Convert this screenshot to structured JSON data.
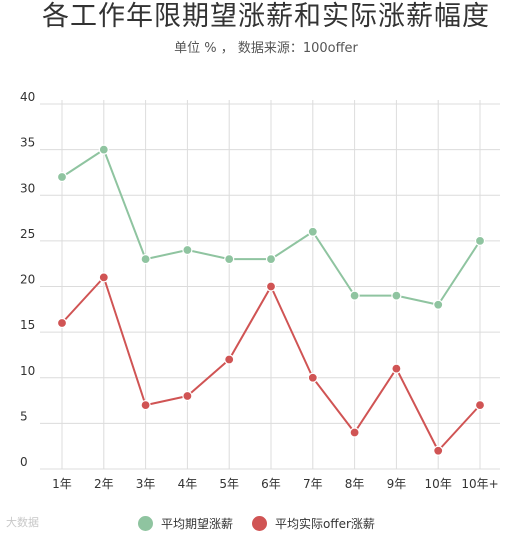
{
  "chart_data": {
    "type": "line",
    "title": "各工作年限期望涨薪和实际涨薪幅度",
    "subtitle": "单位 % ，  数据来源：100offer",
    "categories": [
      "1年",
      "2年",
      "3年",
      "4年",
      "5年",
      "6年",
      "7年",
      "8年",
      "9年",
      "10年",
      "10年+"
    ],
    "ylim": [
      0,
      40
    ],
    "yticks": [
      0,
      5,
      10,
      15,
      20,
      25,
      30,
      35,
      40
    ],
    "grid": true,
    "legend_position": "bottom",
    "series": [
      {
        "name": "平均期望涨薪",
        "color": "#8fc4a0",
        "values": [
          32,
          35,
          23,
          24,
          23,
          23,
          26,
          19,
          19,
          18,
          25
        ]
      },
      {
        "name": "平均实际offer涨薪",
        "color": "#d05454",
        "values": [
          16,
          21,
          7,
          8,
          12,
          20,
          10,
          4,
          11,
          2,
          7
        ]
      }
    ]
  },
  "watermark": "大数据"
}
